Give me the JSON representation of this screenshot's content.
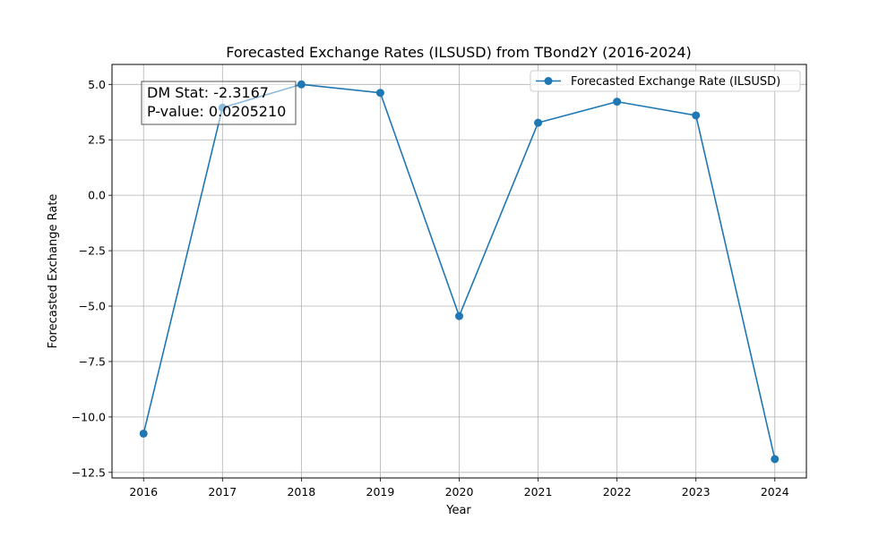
{
  "chart_data": {
    "type": "line",
    "title": "Forecasted Exchange Rates (ILSUSD) from TBond2Y (2016-2024)",
    "xlabel": "Year",
    "ylabel": "Forecasted Exchange Rate",
    "x": [
      2016,
      2017,
      2018,
      2019,
      2020,
      2021,
      2022,
      2023,
      2024
    ],
    "x_tick_labels": [
      "2016",
      "2017",
      "2018",
      "2019",
      "2020",
      "2021",
      "2022",
      "2023",
      "2024"
    ],
    "xlim": [
      2015.6,
      2024.4
    ],
    "ylim": [
      -12.75,
      5.9
    ],
    "y_ticks": [
      5.0,
      2.5,
      0.0,
      -2.5,
      -5.0,
      -7.5,
      -10.0,
      -12.5
    ],
    "y_tick_labels": [
      "5.0",
      "2.5",
      "0.0",
      "−2.5",
      "−5.0",
      "−7.5",
      "−10.0",
      "−12.5"
    ],
    "series": [
      {
        "name": "Forecasted Exchange Rate (ILSUSD)",
        "color": "#1f77b4",
        "marker": "circle",
        "values": [
          -10.75,
          3.95,
          5.0,
          4.62,
          -5.45,
          3.27,
          4.22,
          3.6,
          -11.9
        ]
      }
    ],
    "grid": true,
    "legend_position": "top-right",
    "annotation": {
      "lines": [
        "DM Stat: -2.3167",
        "P-value: 0.0205210"
      ],
      "position": "top-left"
    }
  }
}
